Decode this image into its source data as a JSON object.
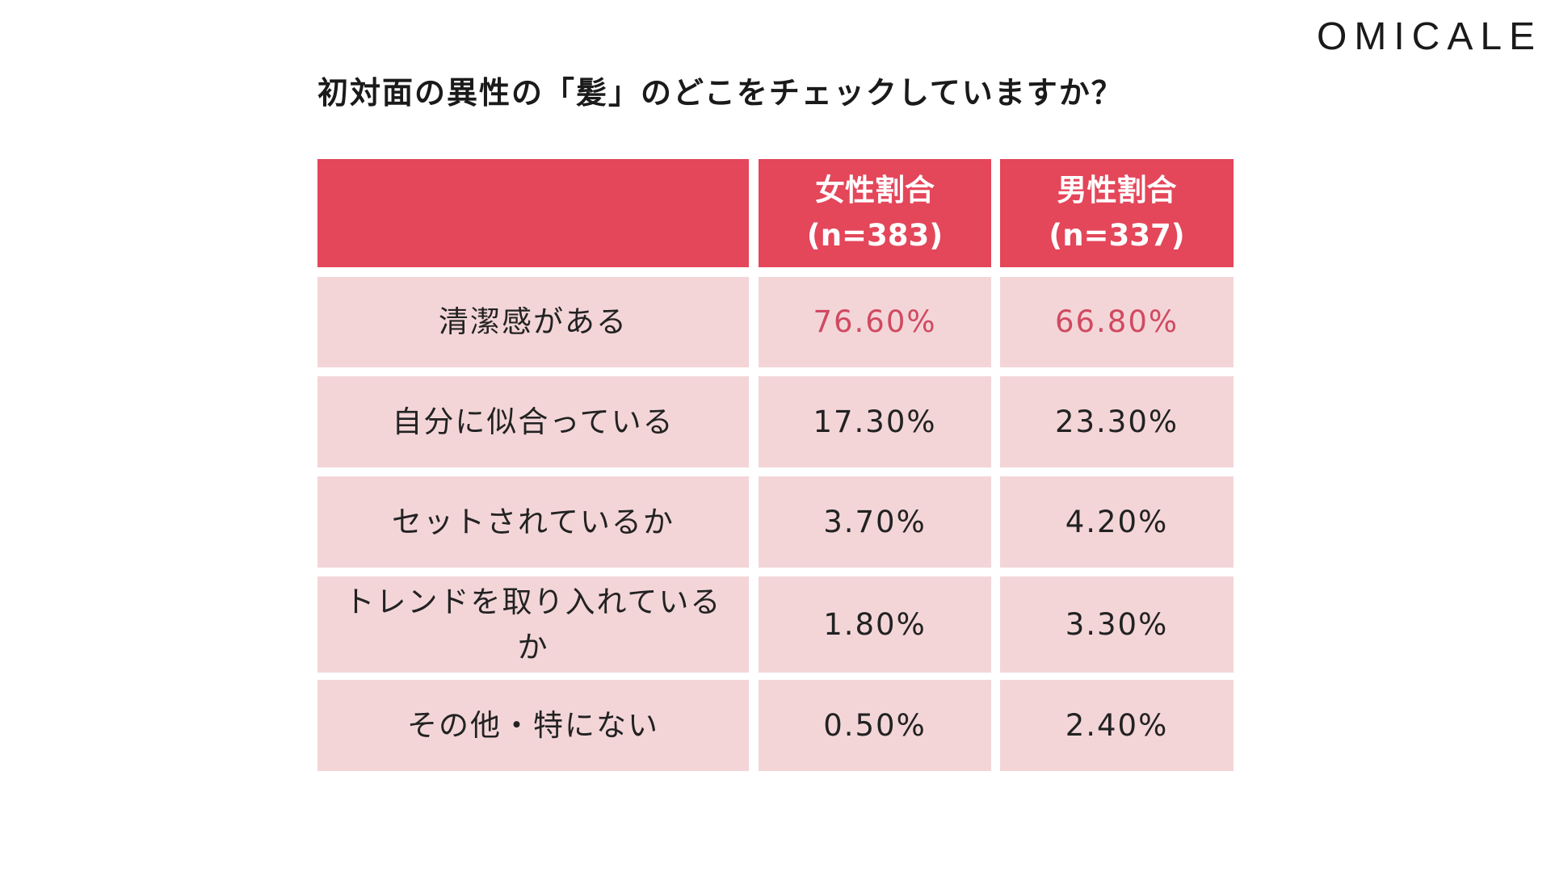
{
  "logo": "OMICALE",
  "title": "初対面の異性の「髪」のどこをチェックしていますか？",
  "colors": {
    "header": "#e4465a",
    "row": "#f3d5d8",
    "highlight": "#d04a60"
  },
  "chart_data": {
    "type": "table",
    "title": "初対面の異性の「髪」のどこをチェックしていますか？",
    "columns": [
      {
        "label": "",
        "sub": ""
      },
      {
        "label": "女性割合",
        "sub": "(n=383)"
      },
      {
        "label": "男性割合",
        "sub": "(n=337)"
      }
    ],
    "rows": [
      {
        "label": "清潔感がある",
        "female": "76.60%",
        "male": "66.80%"
      },
      {
        "label": "自分に似合っている",
        "female": "17.30%",
        "male": "23.30%"
      },
      {
        "label": "セットされているか",
        "female": "3.70%",
        "male": "4.20%"
      },
      {
        "label": "トレンドを取り入れているか",
        "female": "1.80%",
        "male": "3.30%"
      },
      {
        "label": "その他・特にない",
        "female": "0.50%",
        "male": "2.40%"
      }
    ]
  }
}
